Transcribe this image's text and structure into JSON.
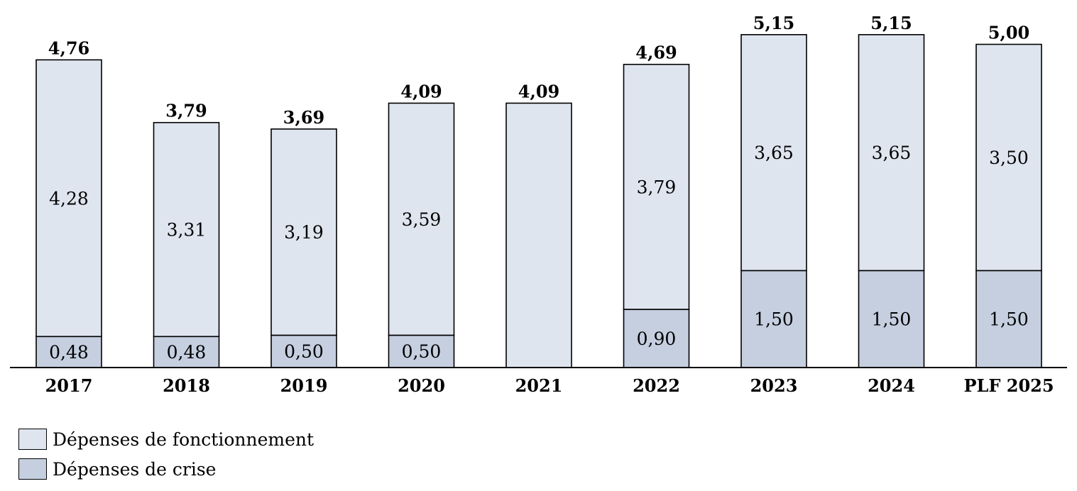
{
  "chart_data": {
    "type": "bar",
    "stacked": true,
    "categories": [
      "2017",
      "2018",
      "2019",
      "2020",
      "2021",
      "2022",
      "2023",
      "2024",
      "PLF 2025"
    ],
    "series": [
      {
        "name": "Dépenses de crise",
        "color": "#c5cfe0",
        "values": [
          0.48,
          0.48,
          0.5,
          0.5,
          0,
          0.9,
          1.5,
          1.5,
          1.5
        ],
        "labels": [
          "0,48",
          "0,48",
          "0,50",
          "0,50",
          "",
          "0,90",
          "1,50",
          "1,50",
          "1,50"
        ]
      },
      {
        "name": "Dépenses de fonctionnement",
        "color": "#dfe5ef",
        "values": [
          4.28,
          3.31,
          3.19,
          3.59,
          4.09,
          3.79,
          3.65,
          3.65,
          3.5
        ],
        "labels": [
          "4,28",
          "3,31",
          "3,19",
          "3,59",
          "",
          "3,79",
          "3,65",
          "3,65",
          "3,50"
        ]
      }
    ],
    "totals": [
      4.76,
      3.79,
      3.69,
      4.09,
      4.09,
      4.69,
      5.15,
      5.15,
      5.0
    ],
    "total_labels": [
      "4,76",
      "3,79",
      "3,69",
      "4,09",
      "4,09",
      "4,69",
      "5,15",
      "5,15",
      "5,00"
    ],
    "ylim": [
      0,
      5.15
    ],
    "grid": false,
    "legend_position": "bottom-left"
  },
  "legend": [
    {
      "label": "Dépenses de fonctionnement",
      "color": "#dfe5ef"
    },
    {
      "label": "Dépenses de crise",
      "color": "#c5cfe0"
    }
  ]
}
